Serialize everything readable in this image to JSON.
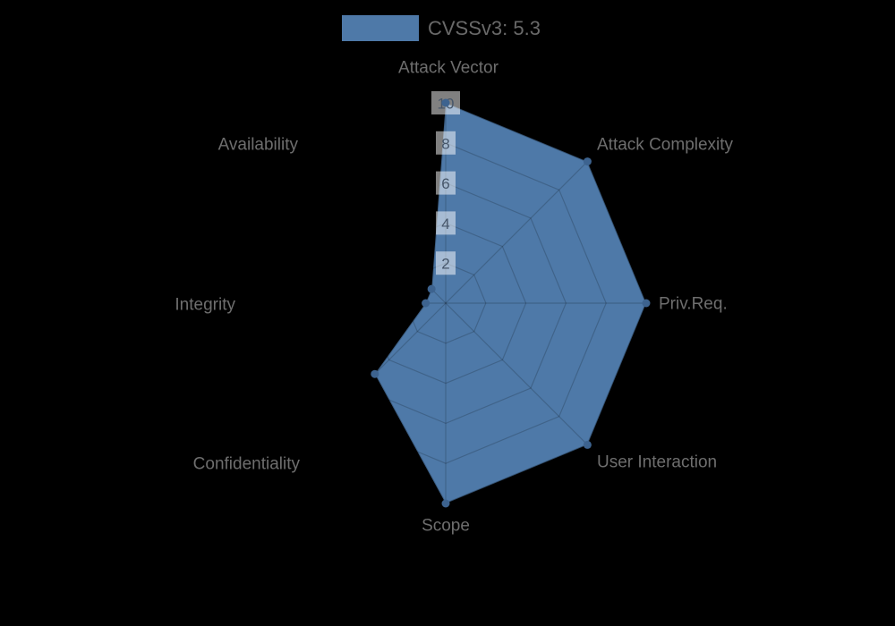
{
  "legend": {
    "label": "CVSSv3: 5.3",
    "swatch_color": "#4e79a8"
  },
  "chart_data": {
    "type": "radar",
    "title": "CVSSv3: 5.3",
    "categories": [
      "Attack Vector",
      "Attack Complexity",
      "Priv.Req.",
      "User Interaction",
      "Scope",
      "Confidentiality",
      "Integrity",
      "Availability"
    ],
    "series": [
      {
        "name": "CVSSv3: 5.3",
        "values": [
          10,
          10,
          10,
          10,
          10,
          5,
          1,
          1
        ]
      }
    ],
    "ticks": [
      2,
      4,
      6,
      8,
      10
    ],
    "rmax": 10,
    "grid": true,
    "legend_position": "top",
    "colors": {
      "background": "#000000",
      "series_fill": "#4e79a8",
      "series_border": "rgba(0,0,0,0.22)",
      "point": "#3d638f",
      "grid_line": "rgba(0,0,0,0.18)",
      "axis_label": "#6e6e6e",
      "tick_text": "#46566a",
      "tick_backdrop": "rgba(255,255,255,0.5)",
      "legend_text": "#696969"
    }
  }
}
